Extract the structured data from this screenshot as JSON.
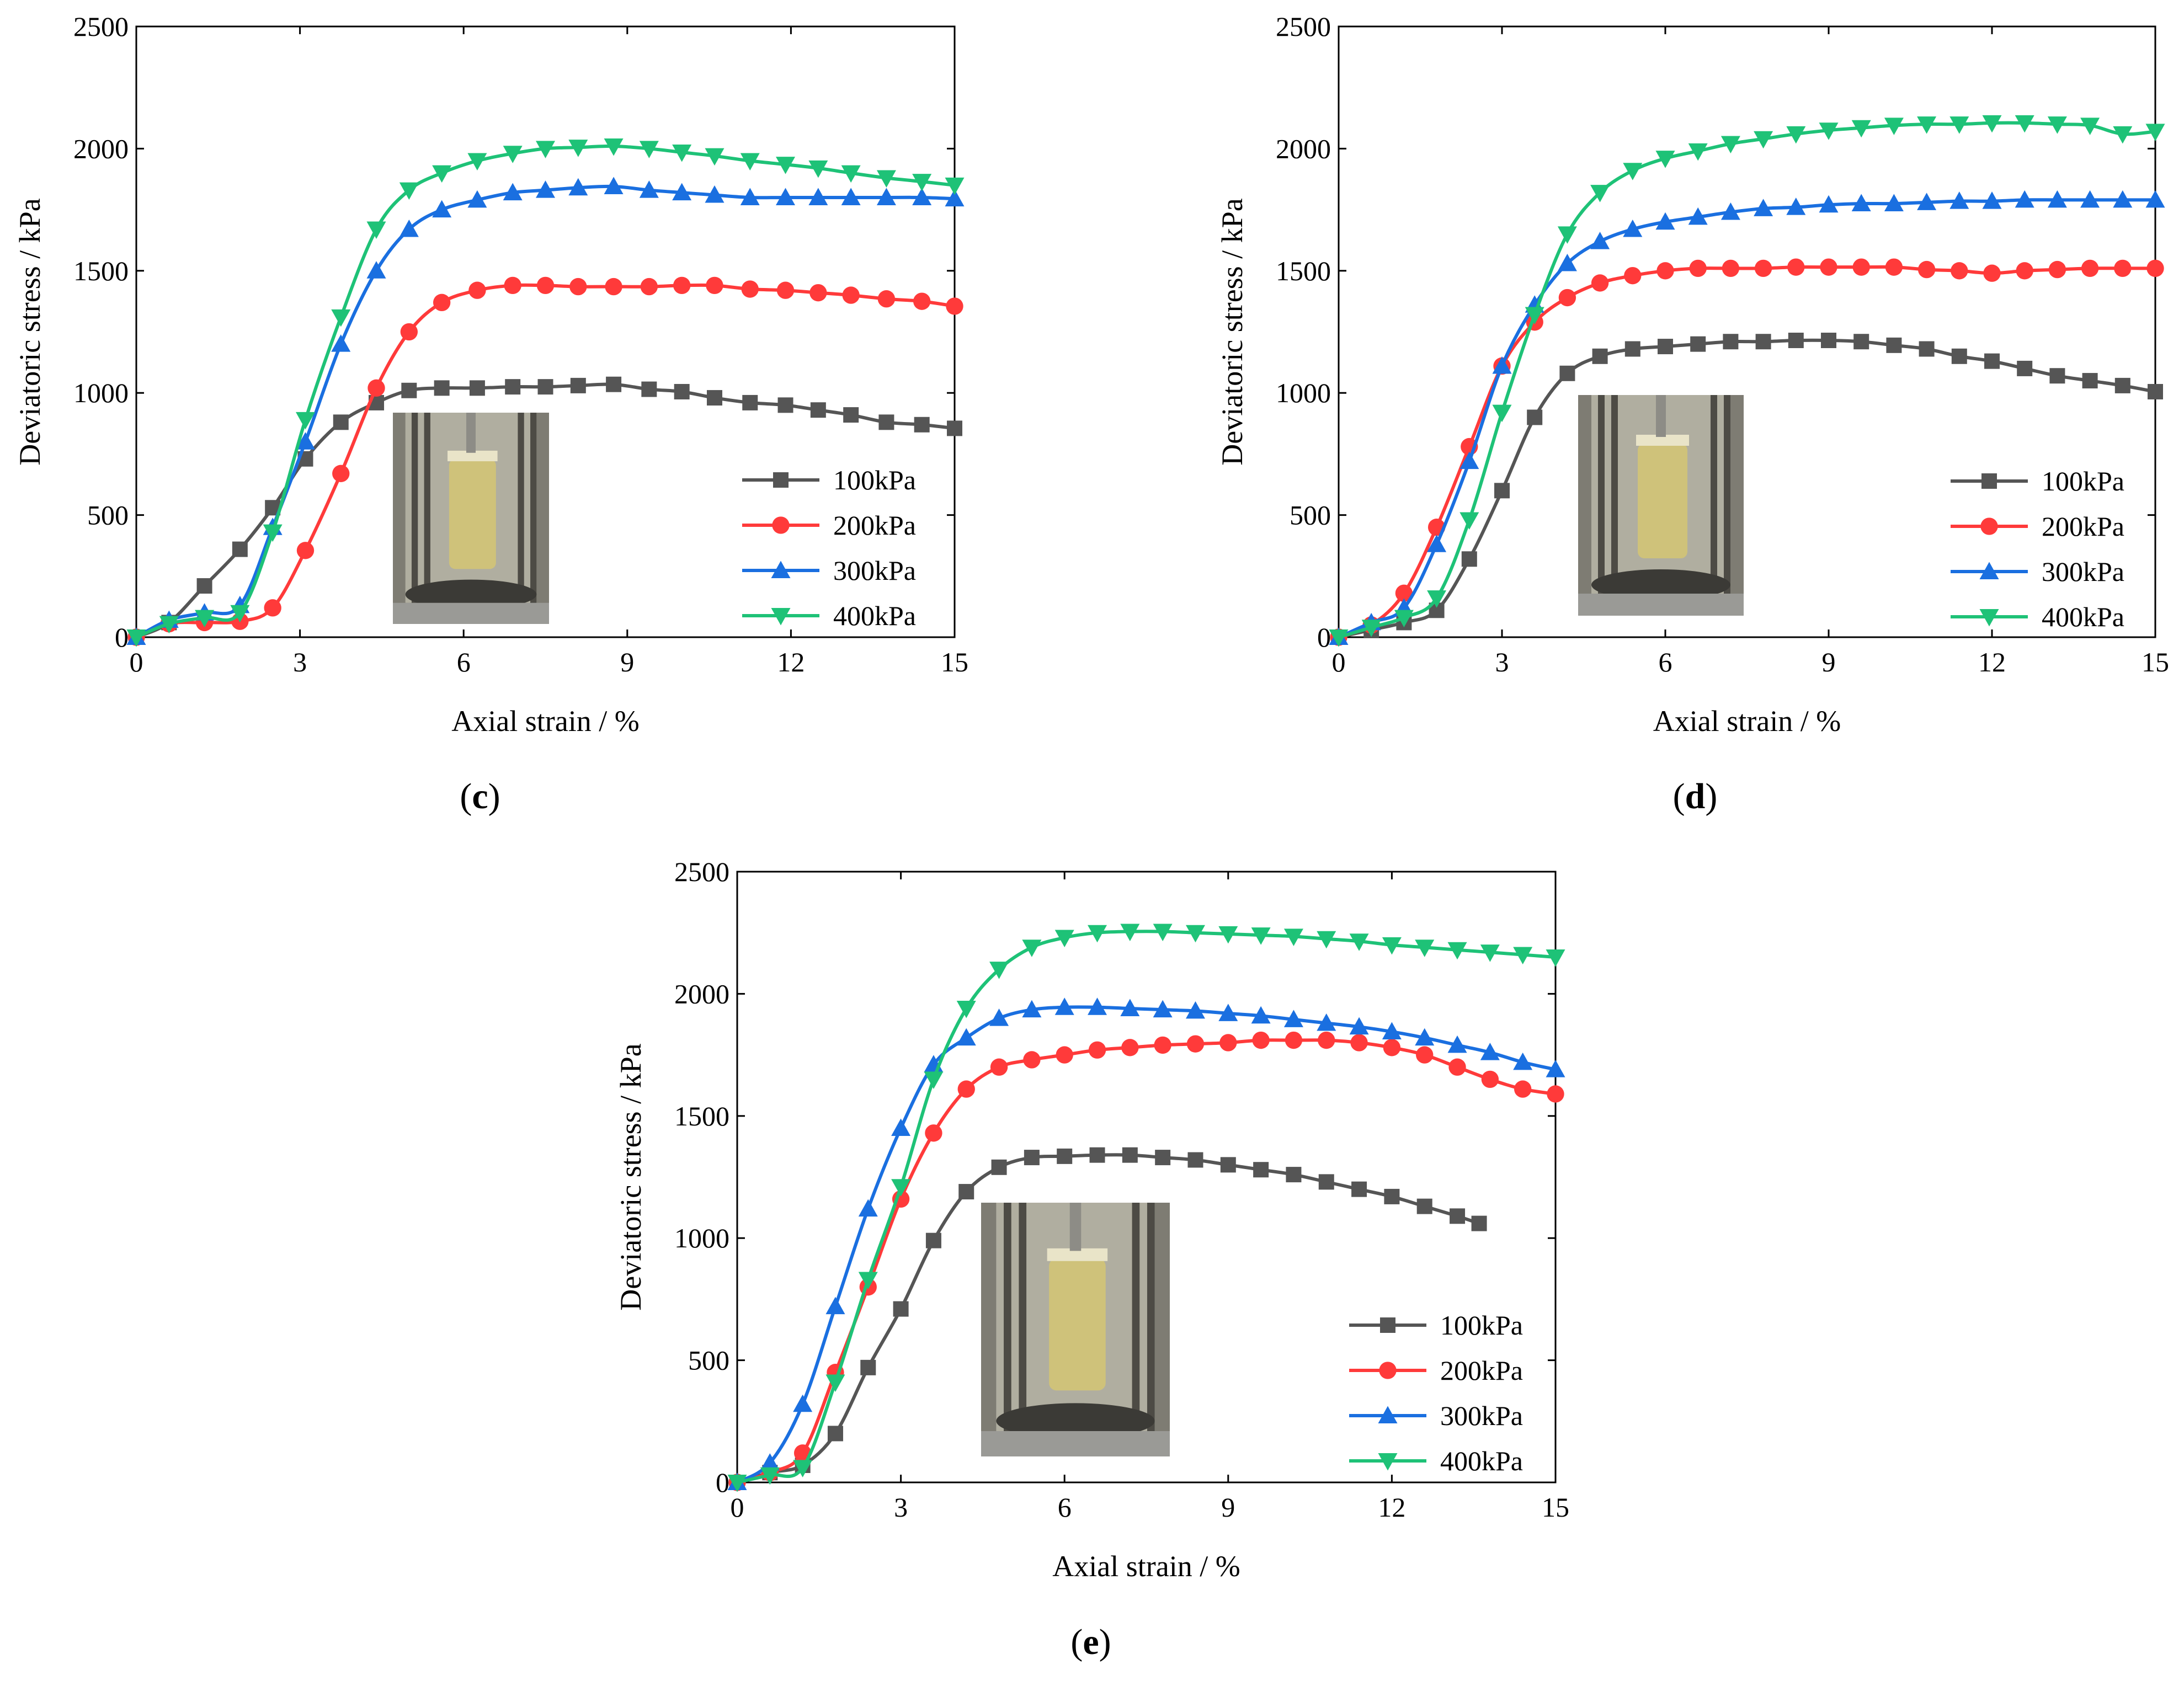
{
  "figure": {
    "panel_captions": [
      {
        "open": "(",
        "letter": "c",
        "close": ")"
      },
      {
        "open": "(",
        "letter": "d",
        "close": ")"
      },
      {
        "open": "(",
        "letter": "e",
        "close": ")"
      }
    ]
  },
  "colors": {
    "100kPa": "#555555",
    "200kPa": "#ff3a3a",
    "300kPa": "#1a6fe0",
    "400kPa": "#1ec277",
    "photo_frame": "#6f6f68",
    "photo_glass": "#b9b7a8",
    "photo_sample": "#cfc27a"
  },
  "photo_description": "inset photograph of triaxial test specimen in cell",
  "chart_data": [
    {
      "panel": "c",
      "type": "line",
      "xlabel": "Axial strain / %",
      "ylabel": "Deviatoric stress / kPa",
      "xlim": [
        0,
        15
      ],
      "ylim": [
        0,
        2500
      ],
      "xticks": [
        0,
        3,
        6,
        9,
        12,
        15
      ],
      "yticks": [
        0,
        500,
        1000,
        1500,
        2000,
        2500
      ],
      "legend_position": "lower-right",
      "series": [
        {
          "name": "100kPa",
          "marker": "square",
          "x": [
            0,
            0.6,
            1.25,
            1.9,
            2.5,
            3.1,
            3.75,
            4.4,
            5,
            5.6,
            6.25,
            6.9,
            7.5,
            8.1,
            8.75,
            9.4,
            10,
            10.6,
            11.25,
            11.9,
            12.5,
            13.1,
            13.75,
            14.4,
            15
          ],
          "y": [
            0,
            60,
            210,
            360,
            530,
            730,
            880,
            960,
            1010,
            1020,
            1020,
            1025,
            1025,
            1030,
            1035,
            1015,
            1005,
            980,
            960,
            950,
            930,
            910,
            880,
            870,
            855
          ]
        },
        {
          "name": "200kPa",
          "marker": "circle",
          "x": [
            0,
            0.6,
            1.25,
            1.9,
            2.5,
            3.1,
            3.75,
            4.4,
            5,
            5.6,
            6.25,
            6.9,
            7.5,
            8.1,
            8.75,
            9.4,
            10,
            10.6,
            11.25,
            11.9,
            12.5,
            13.1,
            13.75,
            14.4,
            15
          ],
          "y": [
            0,
            55,
            60,
            65,
            120,
            355,
            670,
            1020,
            1250,
            1370,
            1420,
            1440,
            1440,
            1435,
            1435,
            1435,
            1440,
            1440,
            1425,
            1420,
            1410,
            1400,
            1385,
            1375,
            1355
          ]
        },
        {
          "name": "300kPa",
          "marker": "triangle-up",
          "x": [
            0,
            0.6,
            1.25,
            1.9,
            2.5,
            3.1,
            3.75,
            4.4,
            5,
            5.6,
            6.25,
            6.9,
            7.5,
            8.1,
            8.75,
            9.4,
            10,
            10.6,
            11.25,
            11.9,
            12.5,
            13.1,
            13.75,
            14.4,
            15
          ],
          "y": [
            0,
            70,
            100,
            130,
            450,
            800,
            1200,
            1500,
            1670,
            1750,
            1790,
            1820,
            1830,
            1840,
            1845,
            1830,
            1820,
            1810,
            1800,
            1800,
            1800,
            1800,
            1800,
            1800,
            1795
          ]
        },
        {
          "name": "400kPa",
          "marker": "triangle-down",
          "x": [
            0,
            0.6,
            1.25,
            1.9,
            2.5,
            3.1,
            3.75,
            4.4,
            5,
            5.6,
            6.25,
            6.9,
            7.5,
            8.1,
            8.75,
            9.4,
            10,
            10.6,
            11.25,
            11.9,
            12.5,
            13.1,
            13.75,
            14.4,
            15
          ],
          "y": [
            0,
            55,
            80,
            100,
            430,
            890,
            1310,
            1670,
            1830,
            1900,
            1950,
            1980,
            2000,
            2005,
            2010,
            2000,
            1985,
            1970,
            1950,
            1935,
            1920,
            1900,
            1880,
            1865,
            1850
          ]
        }
      ]
    },
    {
      "panel": "d",
      "type": "line",
      "xlabel": "Axial strain / %",
      "ylabel": "Deviatoric stress / kPa",
      "xlim": [
        0,
        15
      ],
      "ylim": [
        0,
        2500
      ],
      "xticks": [
        0,
        3,
        6,
        9,
        12,
        15
      ],
      "yticks": [
        0,
        500,
        1000,
        1500,
        2000,
        2500
      ],
      "legend_position": "lower-right",
      "series": [
        {
          "name": "100kPa",
          "marker": "square",
          "x": [
            0,
            0.6,
            1.2,
            1.8,
            2.4,
            3,
            3.6,
            4.2,
            4.8,
            5.4,
            6,
            6.6,
            7.2,
            7.8,
            8.4,
            9,
            9.6,
            10.2,
            10.8,
            11.4,
            12,
            12.6,
            13.2,
            13.8,
            14.4,
            15
          ],
          "y": [
            0,
            30,
            60,
            110,
            320,
            600,
            900,
            1080,
            1150,
            1180,
            1190,
            1200,
            1210,
            1210,
            1215,
            1215,
            1210,
            1195,
            1180,
            1150,
            1130,
            1100,
            1070,
            1050,
            1030,
            1005
          ]
        },
        {
          "name": "200kPa",
          "marker": "circle",
          "x": [
            0,
            0.6,
            1.2,
            1.8,
            2.4,
            3,
            3.6,
            4.2,
            4.8,
            5.4,
            6,
            6.6,
            7.2,
            7.8,
            8.4,
            9,
            9.6,
            10.2,
            10.8,
            11.4,
            12,
            12.6,
            13.2,
            13.8,
            14.4,
            15
          ],
          "y": [
            0,
            50,
            180,
            450,
            780,
            1110,
            1290,
            1390,
            1450,
            1480,
            1500,
            1510,
            1510,
            1510,
            1515,
            1515,
            1515,
            1515,
            1505,
            1500,
            1490,
            1500,
            1505,
            1510,
            1510,
            1510
          ]
        },
        {
          "name": "300kPa",
          "marker": "triangle-up",
          "x": [
            0,
            0.6,
            1.2,
            1.8,
            2.4,
            3,
            3.6,
            4.2,
            4.8,
            5.4,
            6,
            6.6,
            7.2,
            7.8,
            8.4,
            9,
            9.6,
            10.2,
            10.8,
            11.4,
            12,
            12.6,
            13.2,
            13.8,
            14.4,
            15
          ],
          "y": [
            0,
            60,
            120,
            380,
            720,
            1110,
            1360,
            1530,
            1620,
            1670,
            1700,
            1720,
            1740,
            1755,
            1760,
            1770,
            1775,
            1775,
            1780,
            1785,
            1785,
            1790,
            1790,
            1790,
            1790,
            1790
          ]
        },
        {
          "name": "400kPa",
          "marker": "triangle-down",
          "x": [
            0,
            0.6,
            1.2,
            1.8,
            2.4,
            3,
            3.6,
            4.2,
            4.8,
            5.4,
            6,
            6.6,
            7.2,
            7.8,
            8.4,
            9,
            9.6,
            10.2,
            10.8,
            11.4,
            12,
            12.6,
            13.2,
            13.8,
            14.4,
            15
          ],
          "y": [
            0,
            40,
            80,
            160,
            480,
            920,
            1320,
            1650,
            1820,
            1910,
            1960,
            1990,
            2020,
            2040,
            2060,
            2075,
            2085,
            2095,
            2100,
            2100,
            2105,
            2105,
            2100,
            2095,
            2060,
            2070
          ]
        }
      ]
    },
    {
      "panel": "e",
      "type": "line",
      "xlabel": "Axial strain / %",
      "ylabel": "Deviatoric stress / kPa",
      "xlim": [
        0,
        15
      ],
      "ylim": [
        0,
        2500
      ],
      "xticks": [
        0,
        3,
        6,
        9,
        12,
        15
      ],
      "yticks": [
        0,
        500,
        1000,
        1500,
        2000,
        2500
      ],
      "legend_position": "lower-right",
      "series": [
        {
          "name": "100kPa",
          "marker": "square",
          "x": [
            0,
            0.6,
            1.2,
            1.8,
            2.4,
            3,
            3.6,
            4.2,
            4.8,
            5.4,
            6,
            6.6,
            7.2,
            7.8,
            8.4,
            9,
            9.6,
            10.2,
            10.8,
            11.4,
            12,
            12.6,
            13.2,
            13.6
          ],
          "y": [
            0,
            40,
            70,
            200,
            470,
            710,
            990,
            1190,
            1290,
            1330,
            1335,
            1340,
            1340,
            1330,
            1320,
            1300,
            1280,
            1260,
            1230,
            1200,
            1170,
            1130,
            1090,
            1060
          ]
        },
        {
          "name": "200kPa",
          "marker": "circle",
          "x": [
            0,
            0.6,
            1.2,
            1.8,
            2.4,
            3,
            3.6,
            4.2,
            4.8,
            5.4,
            6,
            6.6,
            7.2,
            7.8,
            8.4,
            9,
            9.6,
            10.2,
            10.8,
            11.4,
            12,
            12.6,
            13.2,
            13.8,
            14.4,
            15
          ],
          "y": [
            0,
            40,
            120,
            450,
            800,
            1160,
            1430,
            1610,
            1700,
            1730,
            1750,
            1770,
            1780,
            1790,
            1795,
            1800,
            1810,
            1810,
            1810,
            1800,
            1780,
            1750,
            1700,
            1650,
            1610,
            1590
          ]
        },
        {
          "name": "300kPa",
          "marker": "triangle-up",
          "x": [
            0,
            0.6,
            1.2,
            1.8,
            2.4,
            3,
            3.6,
            4.2,
            4.8,
            5.4,
            6,
            6.6,
            7.2,
            7.8,
            8.4,
            9,
            9.6,
            10.2,
            10.8,
            11.4,
            12,
            12.6,
            13.2,
            13.8,
            14.4,
            15
          ],
          "y": [
            0,
            80,
            320,
            720,
            1120,
            1450,
            1710,
            1820,
            1900,
            1935,
            1945,
            1945,
            1940,
            1935,
            1930,
            1920,
            1910,
            1895,
            1880,
            1865,
            1845,
            1820,
            1790,
            1760,
            1720,
            1690
          ]
        },
        {
          "name": "400kPa",
          "marker": "triangle-down",
          "x": [
            0,
            0.6,
            1.2,
            1.8,
            2.4,
            3,
            3.6,
            4.2,
            4.8,
            5.4,
            6,
            6.6,
            7.2,
            7.8,
            8.4,
            9,
            9.6,
            10.2,
            10.8,
            11.4,
            12,
            12.6,
            13.2,
            13.8,
            14.4,
            15
          ],
          "y": [
            0,
            30,
            60,
            410,
            830,
            1210,
            1650,
            1940,
            2100,
            2190,
            2230,
            2250,
            2255,
            2255,
            2250,
            2245,
            2240,
            2235,
            2225,
            2215,
            2200,
            2190,
            2180,
            2170,
            2160,
            2150
          ]
        }
      ]
    }
  ]
}
